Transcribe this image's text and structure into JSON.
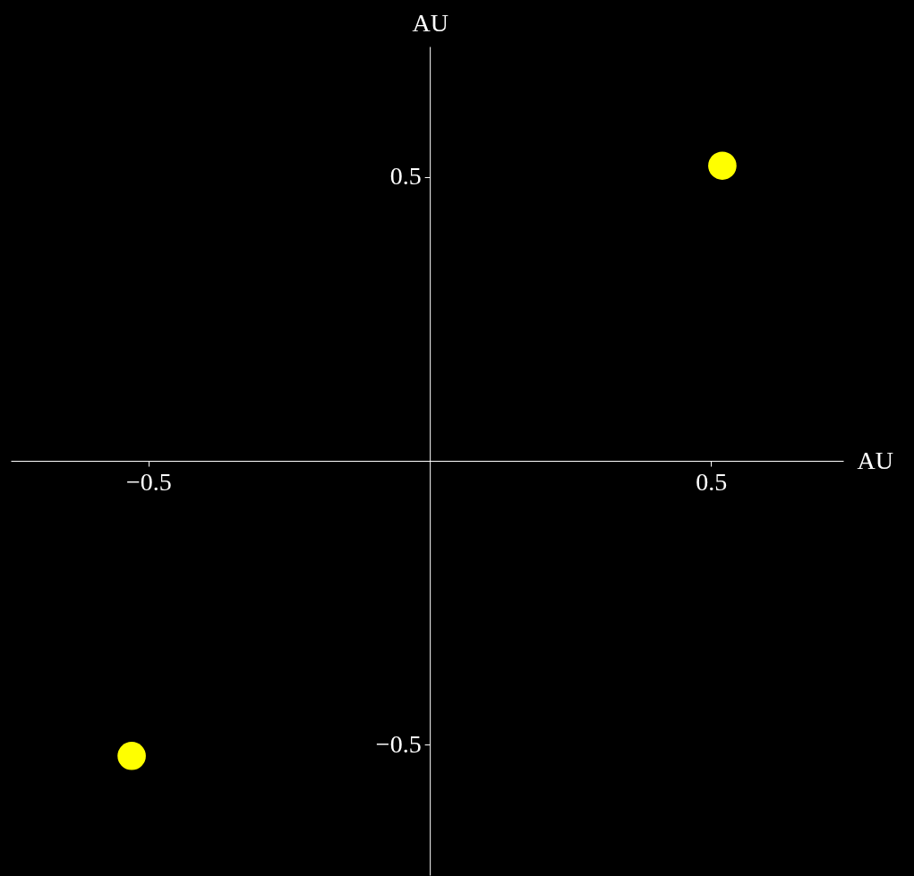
{
  "chart_data": {
    "type": "scatter",
    "xlabel": "AU",
    "ylabel": "AU",
    "x": [
      0.52,
      -0.53
    ],
    "series": [
      {
        "color": "#ffff00",
        "values": [
          0.52,
          -0.52
        ]
      }
    ],
    "xlim": [
      -0.745,
      0.735
    ],
    "ylim": [
      -0.73,
      0.73
    ],
    "xticks": [
      {
        "value": -0.5,
        "label": "−0.5"
      },
      0.5
    ],
    "yticks": [
      {
        "value": -0.5,
        "label": "−0.5"
      },
      0.5
    ],
    "grid": false,
    "legend": false,
    "marker": "circle"
  }
}
